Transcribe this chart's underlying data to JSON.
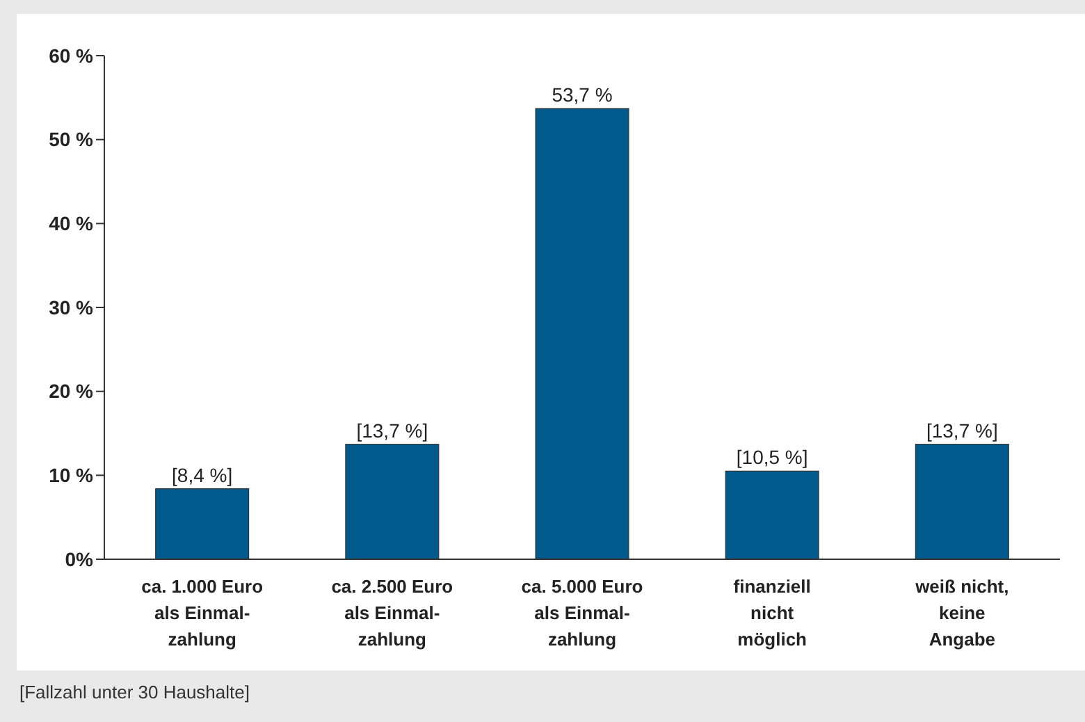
{
  "chart_data": {
    "type": "bar",
    "categories": [
      "ca. 1.000 Euro\nals Einmal-\nzahlung",
      "ca. 2.500 Euro\nals Einmal-\nzahlung",
      "ca. 5.000 Euro\nals Einmal-\nzahlung",
      "finanziell\nnicht\nmöglich",
      "weiß nicht,\nkeine\nAngabe"
    ],
    "values": [
      8.4,
      13.7,
      53.7,
      10.5,
      13.7
    ],
    "value_labels": [
      "[8,4 %]",
      "[13,7 %]",
      "53,7 %",
      "[10,5 %]",
      "[13,7 %]"
    ],
    "color": "#005a8c",
    "ylim": [
      0,
      60
    ],
    "yticks": [
      {
        "value": 0,
        "label": "0%"
      },
      {
        "value": 10,
        "label": "10 %"
      },
      {
        "value": 20,
        "label": "20 %"
      },
      {
        "value": 30,
        "label": "30 %"
      },
      {
        "value": 40,
        "label": "40 %"
      },
      {
        "value": 50,
        "label": "50 %"
      },
      {
        "value": 60,
        "label": "60 %"
      }
    ],
    "grid": false,
    "annotations": [
      "[Fallzahl unter 30 Haushalte]"
    ]
  }
}
